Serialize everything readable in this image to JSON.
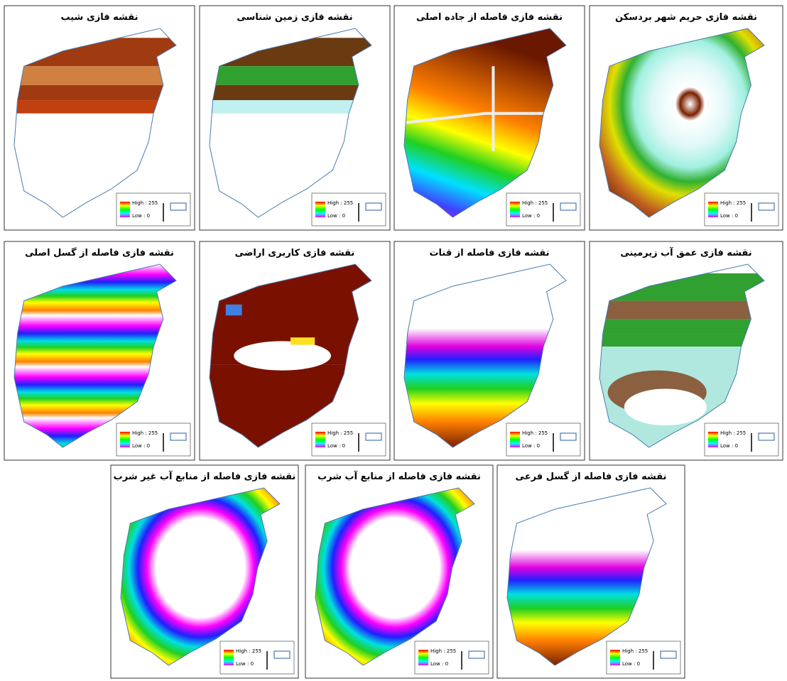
{
  "maps": [
    {
      "title": "نقشه فازی شیب",
      "legend_high": "High : 255",
      "legend_low": "Low : 0"
    },
    {
      "title": "نقشه فازی زمین شناسی",
      "legend_high": "High : 255",
      "legend_low": "Low : 0"
    },
    {
      "title": "نقشه فازی فاصله از جاده اصلی",
      "legend_high": "High : 255",
      "legend_low": "Low : 0"
    },
    {
      "title": "نقشه فازی حریم شهر بردسکن",
      "legend_high": "High : 255",
      "legend_low": "Low : 0"
    },
    {
      "title": "نقشه فازی فاصله از گسل اصلی",
      "legend_high": "High : 255",
      "legend_low": "Low : 0"
    },
    {
      "title": "نقشه فازی کاربری اراضی",
      "legend_high": "High : 255",
      "legend_low": "Low : 0"
    },
    {
      "title": "نقشه فازی فاصله از قنات",
      "legend_high": "High : 255",
      "legend_low": "Low : 0"
    },
    {
      "title": "نقشه فازی عمق آب زیرمینی",
      "legend_high": "High : 255",
      "legend_low": "Low : 0"
    },
    {
      "title": "نقشه فازی فاصله از منابع آب غیر شرب",
      "legend_high": "High : 255",
      "legend_low": "Low : 0"
    },
    {
      "title": "نقشه فازی فاصله از منابع آب شرب",
      "legend_high": "High : 255",
      "legend_low": "Low : 0"
    },
    {
      "title": "نقشه فازی فاصله از گسل فرعی",
      "legend_high": "High : 255",
      "legend_low": "Low : 0"
    }
  ]
}
